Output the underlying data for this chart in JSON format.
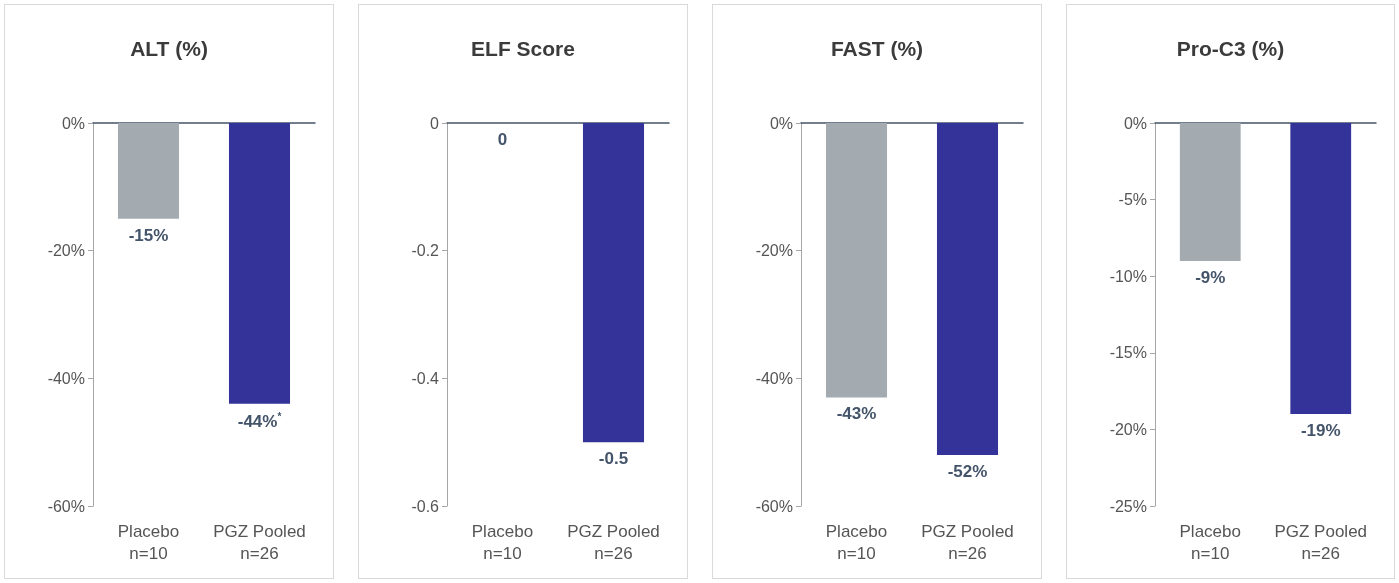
{
  "chart_data": [
    {
      "type": "bar",
      "title": "ALT (%)",
      "categories": [
        "Placebo\nn=10",
        "PGZ Pooled\nn=26"
      ],
      "values": [
        -15,
        -44
      ],
      "colors": [
        "#a3abb1",
        "#333399"
      ],
      "value_labels": [
        "-15%",
        "-44%$^{*}$"
      ],
      "ylim": [
        -60,
        0
      ],
      "yticks": [
        {
          "value": 0,
          "label": "0%"
        },
        {
          "value": -20,
          "label": "-20%"
        },
        {
          "value": -40,
          "label": "-40%"
        },
        {
          "value": -60,
          "label": "-60%"
        }
      ]
    },
    {
      "type": "bar",
      "title": "ELF Score",
      "categories": [
        "Placebo\nn=10",
        "PGZ Pooled\nn=26"
      ],
      "values": [
        0,
        -0.5
      ],
      "colors": [
        "#a3abb1",
        "#333399"
      ],
      "value_labels": [
        "0",
        "-0.5"
      ],
      "ylim": [
        -0.6,
        0
      ],
      "yticks": [
        0,
        -0.2,
        -0.4,
        -0.6
      ]
    },
    {
      "type": "bar",
      "title": "FAST (%)",
      "categories": [
        "Placebo\nn=10",
        "PGZ Pooled\nn=26"
      ],
      "values": [
        -43,
        -52
      ],
      "colors": [
        "#a3abb1",
        "#333399"
      ],
      "value_labels": [
        "-43%",
        "-52%"
      ],
      "ylim": [
        -60,
        0
      ],
      "yticks": [
        {
          "value": 0,
          "label": "0%"
        },
        {
          "value": -20,
          "label": "-20%"
        },
        {
          "value": -40,
          "label": "-40%"
        },
        {
          "value": -60,
          "label": "-60%"
        }
      ]
    },
    {
      "type": "bar",
      "title": "Pro-C3 (%)",
      "categories": [
        "Placebo\nn=10",
        "PGZ Pooled\nn=26"
      ],
      "values": [
        -9,
        -19
      ],
      "colors": [
        "#a3abb1",
        "#333399"
      ],
      "value_labels": [
        "-9%",
        "-19%"
      ],
      "ylim": [
        -25,
        0
      ],
      "yticks": [
        {
          "value": 0,
          "label": "0%"
        },
        {
          "value": -5,
          "label": "-5%"
        },
        {
          "value": -10,
          "label": "-10%"
        },
        {
          "value": -15,
          "label": "-15%"
        },
        {
          "value": -20,
          "label": "-20%"
        },
        {
          "value": -25,
          "label": "-25%"
        }
      ]
    }
  ]
}
